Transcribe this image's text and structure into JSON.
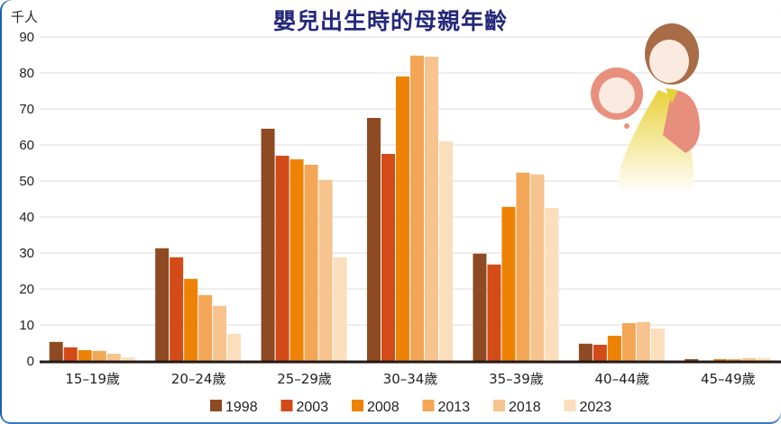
{
  "chart_data": {
    "type": "bar",
    "title": "嬰兒出生時的母親年齡",
    "ylabel": "千人",
    "xlabel": "",
    "ylim": [
      0,
      90
    ],
    "yticks": [
      0,
      10,
      20,
      30,
      40,
      50,
      60,
      70,
      80,
      90
    ],
    "grid": true,
    "legend_position": "bottom",
    "categories": [
      "15–19歲",
      "20–24歲",
      "25–29歲",
      "30–34歲",
      "35–39歲",
      "40–44歲",
      "45–49歲"
    ],
    "series": [
      {
        "name": "1998",
        "color": "#8e4a22",
        "values": [
          5.3,
          31.3,
          64.5,
          67.5,
          29.8,
          4.8,
          0.5
        ]
      },
      {
        "name": "2003",
        "color": "#d34b18",
        "values": [
          3.8,
          28.8,
          57.0,
          57.5,
          26.8,
          4.5,
          0
        ]
      },
      {
        "name": "2008",
        "color": "#ee8204",
        "values": [
          3.0,
          22.8,
          56.0,
          79.0,
          42.8,
          7.0,
          0.5
        ]
      },
      {
        "name": "2013",
        "color": "#f3a656",
        "values": [
          2.8,
          18.3,
          54.5,
          84.8,
          52.3,
          10.5,
          0.5
        ]
      },
      {
        "name": "2018",
        "color": "#f7c38e",
        "values": [
          2.0,
          15.3,
          50.3,
          84.5,
          51.8,
          10.8,
          0.8
        ]
      },
      {
        "name": "2023",
        "color": "#fbdfbc",
        "values": [
          1.0,
          7.5,
          28.8,
          61.0,
          42.5,
          9.0,
          0.8
        ]
      }
    ]
  }
}
